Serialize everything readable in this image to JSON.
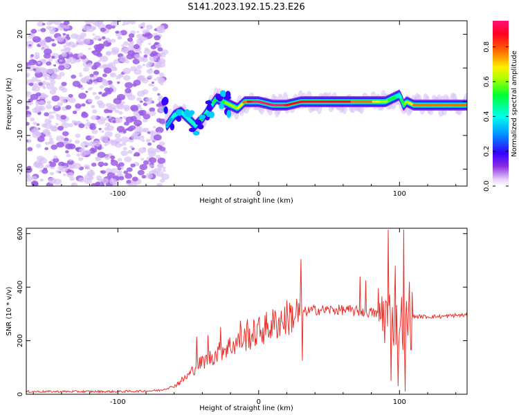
{
  "title": "S141.2023.192.15.23.E26",
  "colors": {
    "snr_line": "#e8302a",
    "noise": "#9b5de5",
    "noise_light": "#d9c2f5",
    "colormap": [
      "#ffffff",
      "#e6d2f7",
      "#8a2be2",
      "#3300ff",
      "#0099ff",
      "#00ffee",
      "#00ff33",
      "#aaff00",
      "#ffee00",
      "#ff6600",
      "#ff0022",
      "#ff1177"
    ]
  },
  "chart_data": [
    {
      "type": "heatmap",
      "xlabel": "Height of straight line (km)",
      "ylabel": "Frequency (Hz)",
      "xlim": [
        -165,
        148
      ],
      "ylim": [
        -25,
        24
      ],
      "x_ticks": [
        -100,
        0,
        100
      ],
      "y_ticks": [
        -20,
        -10,
        0,
        10,
        20
      ],
      "colorbar": {
        "label": "Normalized spectral amplitude",
        "range": [
          0,
          0.95
        ],
        "ticks": [
          0.0,
          0.2,
          0.4,
          0.6,
          0.8
        ]
      },
      "noise_region_x": [
        -165,
        -66
      ],
      "ridge": {
        "x": [
          -65,
          -60,
          -55,
          -50,
          -45,
          -40,
          -35,
          -30,
          -25,
          -20,
          -15,
          -10,
          -5,
          0,
          10,
          20,
          30,
          40,
          50,
          60,
          70,
          80,
          90,
          95,
          100,
          103,
          105,
          110,
          120,
          130,
          140,
          148
        ],
        "y": [
          -7,
          -4,
          -3,
          -5,
          -7,
          -5,
          -2,
          1,
          0,
          -1,
          -2,
          0,
          0,
          0,
          -1,
          -1,
          0,
          0,
          0,
          0,
          0,
          0,
          0,
          1,
          2,
          -1,
          0,
          -1,
          -1,
          -1,
          -1,
          -1
        ],
        "amplitude": [
          0.35,
          0.4,
          0.45,
          0.4,
          0.45,
          0.5,
          0.45,
          0.5,
          0.55,
          0.6,
          0.65,
          0.75,
          0.9,
          0.95,
          0.95,
          0.9,
          0.9,
          0.85,
          0.9,
          0.85,
          0.8,
          0.75,
          0.6,
          0.5,
          0.45,
          0.55,
          0.6,
          0.75,
          0.75,
          0.75,
          0.75,
          0.75
        ]
      }
    },
    {
      "type": "line",
      "xlabel": "Height of straight line (km)",
      "ylabel": "SNR (10 * v/v)",
      "xlim": [
        -165,
        148
      ],
      "ylim": [
        0,
        620
      ],
      "x_ticks": [
        -100,
        0,
        100
      ],
      "y_ticks": [
        0,
        200,
        400,
        600
      ],
      "series": [
        {
          "x": [
            -165,
            -140,
            -120,
            -100,
            -80,
            -70,
            -60,
            -55,
            -50,
            -45,
            -40,
            -35,
            -30,
            -25,
            -20,
            -15,
            -10,
            -5,
            0,
            10,
            20,
            25,
            30,
            35,
            40,
            50,
            60,
            70,
            80,
            85,
            90,
            95,
            100,
            105,
            108,
            110,
            120,
            130,
            140,
            148
          ],
          "y": [
            10,
            10,
            10,
            10,
            12,
            15,
            30,
            50,
            70,
            100,
            120,
            135,
            150,
            170,
            180,
            195,
            210,
            220,
            235,
            260,
            285,
            295,
            305,
            310,
            315,
            315,
            315,
            310,
            305,
            300,
            300,
            280,
            275,
            270,
            270,
            290,
            290,
            290,
            295,
            295
          ],
          "spikes": [
            {
              "x": -44,
              "y": 215
            },
            {
              "x": -36,
              "y": 220
            },
            {
              "x": -27,
              "y": 250
            },
            {
              "x": -13,
              "y": 275
            },
            {
              "x": -8,
              "y": 280
            },
            {
              "x": 30,
              "y": 505
            },
            {
              "x": 31,
              "y": 125
            },
            {
              "x": 72,
              "y": 440
            },
            {
              "x": 76,
              "y": 425
            },
            {
              "x": 92,
              "y": 615
            },
            {
              "x": 94,
              "y": 50
            },
            {
              "x": 97,
              "y": 480
            },
            {
              "x": 99,
              "y": 30
            },
            {
              "x": 103,
              "y": 615
            },
            {
              "x": 104,
              "y": 10
            },
            {
              "x": 107,
              "y": 420
            }
          ]
        }
      ]
    }
  ]
}
